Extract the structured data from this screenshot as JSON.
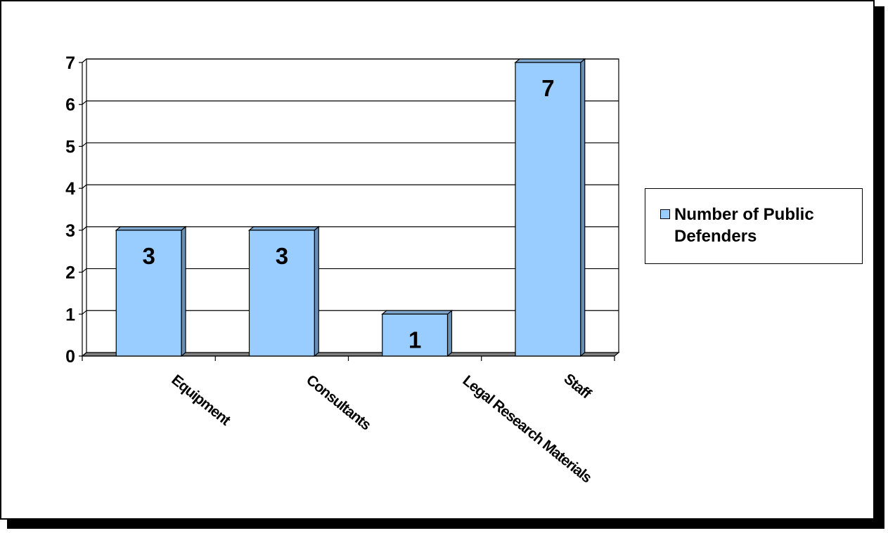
{
  "chart_data": {
    "type": "bar",
    "title": "",
    "xlabel": "",
    "ylabel": "",
    "categories": [
      "Equipment",
      "Consultants",
      "Legal Research Materials",
      "Staff"
    ],
    "series": [
      {
        "name": "Number of Public Defenders",
        "values": [
          3,
          3,
          1,
          7
        ],
        "color": "#99ccff"
      }
    ],
    "data_labels": [
      "3",
      "3",
      "1",
      "7"
    ],
    "y_ticks": [
      "0",
      "1",
      "2",
      "3",
      "4",
      "5",
      "6",
      "7"
    ],
    "ylim": [
      0,
      7
    ],
    "grid": true,
    "style": "3d-column",
    "legend_position": "right"
  }
}
